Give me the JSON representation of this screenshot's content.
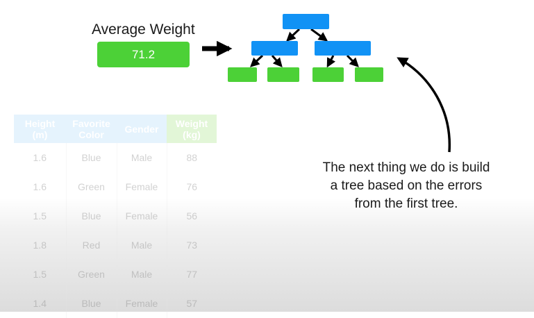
{
  "average": {
    "label": "Average Weight",
    "value": "71.2"
  },
  "caption": {
    "lines": [
      "The next thing we do is build",
      "a tree based on the errors",
      "from the first tree."
    ]
  },
  "table": {
    "headers": [
      {
        "line1": "Height",
        "line2": "(m)"
      },
      {
        "line1": "Favorite",
        "line2": "Color"
      },
      {
        "line1": "Gender",
        "line2": ""
      },
      {
        "line1": "Weight",
        "line2": "(kg)"
      }
    ],
    "rows": [
      [
        "1.6",
        "Blue",
        "Male",
        "88"
      ],
      [
        "1.6",
        "Green",
        "Female",
        "76"
      ],
      [
        "1.5",
        "Blue",
        "Female",
        "56"
      ],
      [
        "1.8",
        "Red",
        "Male",
        "73"
      ],
      [
        "1.5",
        "Green",
        "Male",
        "77"
      ],
      [
        "1.4",
        "Blue",
        "Female",
        "57"
      ]
    ]
  },
  "colors": {
    "internal_node": "#1192f5",
    "leaf_node": "#4cd137",
    "feature_header": "#aad8fa",
    "target_header": "#a2e27e"
  }
}
